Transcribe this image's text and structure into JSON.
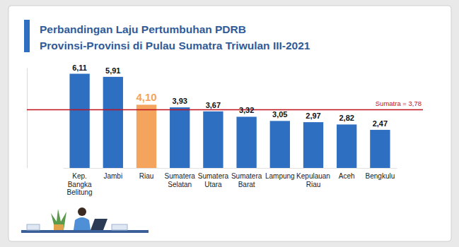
{
  "chart_data": {
    "type": "bar",
    "title": "Perbandingan Laju Pertumbuhan PDRB",
    "subtitle": "Provinsi-Provinsi di Pulau Sumatra Triwulan III-2021",
    "categories": [
      "Kep. Bangka Belitung",
      "Jambi",
      "Riau",
      "Sumatera Selatan",
      "Sumatera Utara",
      "Sumatera Barat",
      "Lampung",
      "Kepulauan Riau",
      "Aceh",
      "Bengkulu"
    ],
    "values": [
      6.11,
      5.91,
      4.1,
      3.93,
      3.67,
      3.32,
      3.05,
      2.97,
      2.82,
      2.47
    ],
    "value_labels": [
      "6,11",
      "5,91",
      "4,10",
      "3,93",
      "3,67",
      "3,32",
      "3,05",
      "2,97",
      "2,82",
      "2,47"
    ],
    "colors": [
      "#2f6fc1",
      "#2f6fc1",
      "#f4a45c",
      "#2f6fc1",
      "#2f6fc1",
      "#2f6fc1",
      "#2f6fc1",
      "#2f6fc1",
      "#2f6fc1",
      "#2f6fc1"
    ],
    "data_labels": true,
    "tick_labels": "x",
    "grid": false,
    "ylim": [
      0,
      6.5
    ],
    "reference_line": {
      "value": 3.78,
      "label": "Sumatra = 3,78",
      "color": "#c0111f"
    }
  }
}
